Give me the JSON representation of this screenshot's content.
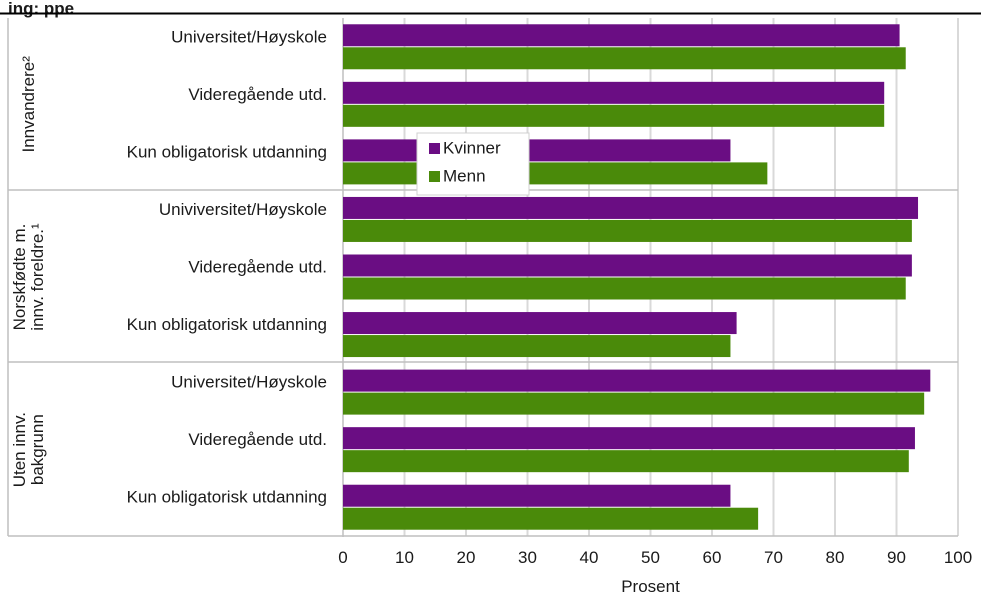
{
  "header_fragment": "ing: ppe",
  "chart_data": {
    "type": "bar",
    "orientation": "horizontal",
    "xlabel": "Prosent",
    "xlim": [
      0,
      100
    ],
    "xticks": [
      "0",
      "10",
      "20",
      "30",
      "40",
      "50",
      "60",
      "70",
      "80",
      "90",
      "100"
    ],
    "grid": true,
    "legend_position": "inside, upper middle",
    "series": [
      {
        "name": "Kvinner",
        "color": "#6a0d83"
      },
      {
        "name": "Menn",
        "color": "#4a8a0a"
      }
    ],
    "groups": [
      {
        "label_lines": [
          "Innvandrere²"
        ],
        "rows": [
          {
            "category": "Universitet/Høyskole",
            "values": [
              90.5,
              91.5
            ]
          },
          {
            "category": "Videregående utd.",
            "values": [
              88.0,
              88.0
            ]
          },
          {
            "category": "Kun obligatorisk utdanning",
            "values": [
              63.0,
              69.0
            ]
          }
        ]
      },
      {
        "label_lines": [
          "Norskfødte m.",
          "innv. foreldre.¹"
        ],
        "rows": [
          {
            "category": "Univiversitet/Høyskole",
            "values": [
              93.5,
              92.5
            ]
          },
          {
            "category": "Videregående utd.",
            "values": [
              92.5,
              91.5
            ]
          },
          {
            "category": "Kun obligatorisk utdanning",
            "values": [
              64.0,
              63.0
            ]
          }
        ]
      },
      {
        "label_lines": [
          "Uten innv.",
          "bakgrunn"
        ],
        "rows": [
          {
            "category": "Universitet/Høyskole",
            "values": [
              95.5,
              94.5
            ]
          },
          {
            "category": "Videregående utd.",
            "values": [
              93.0,
              92.0
            ]
          },
          {
            "category": "Kun obligatorisk utdanning",
            "values": [
              63.0,
              67.5
            ]
          }
        ]
      }
    ]
  }
}
